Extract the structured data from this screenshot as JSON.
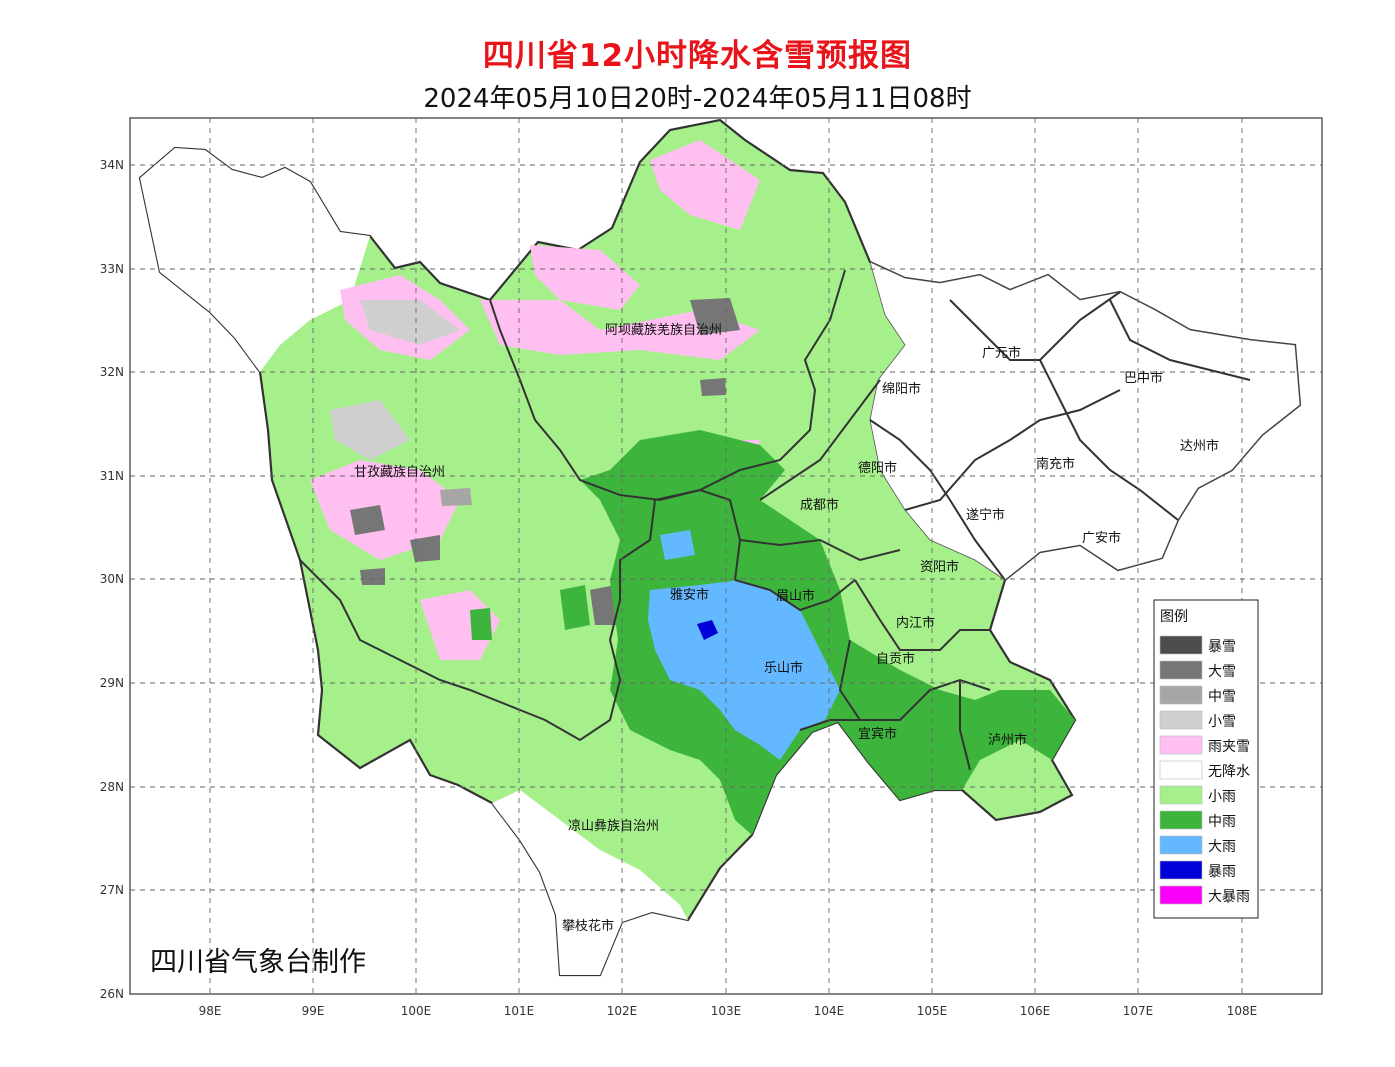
{
  "title": "四川省12小时降水含雪预报图",
  "subtitle": "2024年05月10日20时-2024年05月11日08时",
  "credit": "四川省气象台制作",
  "lat_ticks": [
    "34N",
    "33N",
    "32N",
    "31N",
    "30N",
    "29N",
    "28N",
    "27N",
    "26N"
  ],
  "lon_ticks": [
    "98E",
    "99E",
    "100E",
    "101E",
    "102E",
    "103E",
    "104E",
    "105E",
    "106E",
    "107E",
    "108E"
  ],
  "legend": {
    "title": "图例",
    "items": [
      {
        "label": "暴雪",
        "color": "#4d4d4d"
      },
      {
        "label": "大雪",
        "color": "#767676"
      },
      {
        "label": "中雪",
        "color": "#a6a6a6"
      },
      {
        "label": "小雪",
        "color": "#cfcfcf"
      },
      {
        "label": "雨夹雪",
        "color": "#ffbff0"
      },
      {
        "label": "无降水",
        "color": "#ffffff"
      },
      {
        "label": "小雨",
        "color": "#a6f08c"
      },
      {
        "label": "中雨",
        "color": "#3db53d"
      },
      {
        "label": "大雨",
        "color": "#63b8ff"
      },
      {
        "label": "暴雨",
        "color": "#0000d9"
      },
      {
        "label": "大暴雨",
        "color": "#fa00fa"
      }
    ]
  },
  "cities": [
    {
      "name": "阿坝藏族羌族自治州"
    },
    {
      "name": "甘孜藏族自治州"
    },
    {
      "name": "凉山彝族自治州"
    },
    {
      "name": "广元市"
    },
    {
      "name": "巴中市"
    },
    {
      "name": "绵阳市"
    },
    {
      "name": "达州市"
    },
    {
      "name": "德阳市"
    },
    {
      "name": "南充市"
    },
    {
      "name": "成都市"
    },
    {
      "name": "遂宁市"
    },
    {
      "name": "广安市"
    },
    {
      "name": "资阳市"
    },
    {
      "name": "雅安市"
    },
    {
      "name": "眉山市"
    },
    {
      "name": "内江市"
    },
    {
      "name": "乐山市"
    },
    {
      "name": "自贡市"
    },
    {
      "name": "宜宾市"
    },
    {
      "name": "泸州市"
    },
    {
      "name": "攀枝花市"
    }
  ]
}
